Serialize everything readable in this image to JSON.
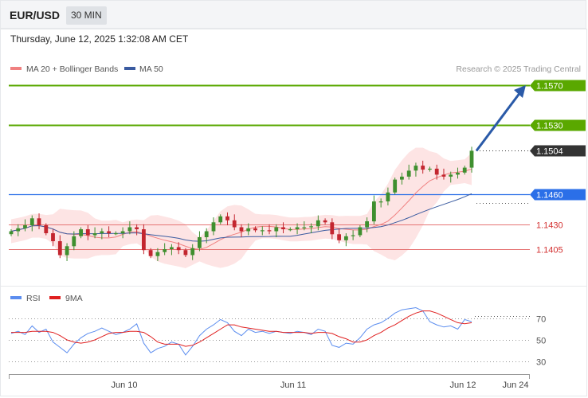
{
  "header": {
    "symbol": "EUR/USD",
    "interval": "30 MIN"
  },
  "datetime": "Thursday, June 12, 2025 1:32:08 AM CET",
  "legend": {
    "ma20_label": "MA 20 + Bollinger Bands",
    "ma50_label": "MA 50",
    "credit": "Research © 2025 Trading Central"
  },
  "rsi_legend": {
    "rsi_label": "RSI",
    "ma_label": "9MA"
  },
  "colors": {
    "up": "#3f8f2f",
    "down": "#c3262f",
    "resistance_green": "#5aa800",
    "pivot_blue": "#2b6fe8",
    "support_red": "#e57373",
    "ma20": "#f08080",
    "ma50": "#3a5ba0",
    "bands_fill": "#fde4e4",
    "rsi": "#5b8def",
    "rsi_ma": "#e02020",
    "arrow": "#2a5aa8",
    "current_tag": "#333333"
  },
  "chart_data": [
    {
      "type": "candlestick",
      "title": "EUR/USD",
      "interval": "30 MIN",
      "xlabels": [
        "Jun 10",
        "Jun 11",
        "Jun 12",
        "Jun 24"
      ],
      "ylim": [
        1.1388,
        1.1575
      ],
      "current_price": 1.1504,
      "levels": [
        {
          "label": "1.1570",
          "value": 1.157,
          "kind": "resistance"
        },
        {
          "label": "1.1530",
          "value": 1.153,
          "kind": "resistance"
        },
        {
          "label": "1.1504",
          "value": 1.1504,
          "kind": "current"
        },
        {
          "label": "1.1460",
          "value": 1.146,
          "kind": "pivot"
        },
        {
          "label": "1.1430",
          "value": 1.143,
          "kind": "support"
        },
        {
          "label": "1.1405",
          "value": 1.1405,
          "kind": "support"
        }
      ],
      "series": [
        {
          "name": "MA 20 + Bollinger Bands"
        },
        {
          "name": "MA 50"
        }
      ],
      "forecast_arrow": {
        "from": 1.1504,
        "to": 1.157
      },
      "close_path": [
        1.1423,
        1.1426,
        1.1429,
        1.1436,
        1.1429,
        1.1421,
        1.1413,
        1.1399,
        1.1408,
        1.1418,
        1.1425,
        1.1419,
        1.1421,
        1.1423,
        1.1421,
        1.1421,
        1.1423,
        1.1427,
        1.1425,
        1.1404,
        1.1398,
        1.1402,
        1.1405,
        1.1407,
        1.1404,
        1.1399,
        1.1406,
        1.1417,
        1.1423,
        1.1432,
        1.1438,
        1.1434,
        1.1427,
        1.1423,
        1.1426,
        1.1424,
        1.1424,
        1.1423,
        1.1427,
        1.1425,
        1.1425,
        1.1427,
        1.1427,
        1.1428,
        1.1434,
        1.1432,
        1.142,
        1.1414,
        1.1418,
        1.1419,
        1.1427,
        1.1433,
        1.1453,
        1.1453,
        1.1462,
        1.1475,
        1.1478,
        1.1484,
        1.1489,
        1.1485,
        1.1486,
        1.148,
        1.1478,
        1.148,
        1.1482,
        1.1487,
        1.1504
      ]
    },
    {
      "type": "line",
      "title": "RSI",
      "series": [
        {
          "name": "RSI"
        },
        {
          "name": "9MA"
        }
      ],
      "yticks": [
        70,
        50,
        30
      ],
      "ylim": [
        20,
        85
      ],
      "rsi_values": [
        56,
        58,
        55,
        63,
        57,
        60,
        48,
        43,
        38,
        46,
        52,
        56,
        58,
        61,
        58,
        55,
        57,
        60,
        65,
        47,
        38,
        42,
        44,
        48,
        46,
        36,
        44,
        54,
        60,
        64,
        69,
        66,
        58,
        54,
        60,
        57,
        58,
        56,
        58,
        57,
        56,
        58,
        57,
        55,
        60,
        58,
        45,
        43,
        47,
        46,
        52,
        60,
        64,
        66,
        70,
        75,
        78,
        79,
        80,
        77,
        67,
        64,
        62,
        63,
        60,
        69,
        67
      ],
      "ma_values": [
        57,
        57,
        57,
        58,
        58,
        58,
        57,
        54,
        50,
        48,
        47,
        48,
        50,
        53,
        56,
        57,
        57,
        58,
        58,
        57,
        53,
        48,
        46,
        46,
        46,
        44,
        45,
        48,
        52,
        56,
        60,
        64,
        64,
        62,
        61,
        60,
        59,
        58,
        58,
        57,
        57,
        57,
        57,
        56,
        57,
        57,
        56,
        53,
        51,
        48,
        48,
        50,
        54,
        57,
        61,
        64,
        68,
        72,
        75,
        77,
        77,
        75,
        72,
        69,
        66,
        65,
        66
      ]
    }
  ]
}
